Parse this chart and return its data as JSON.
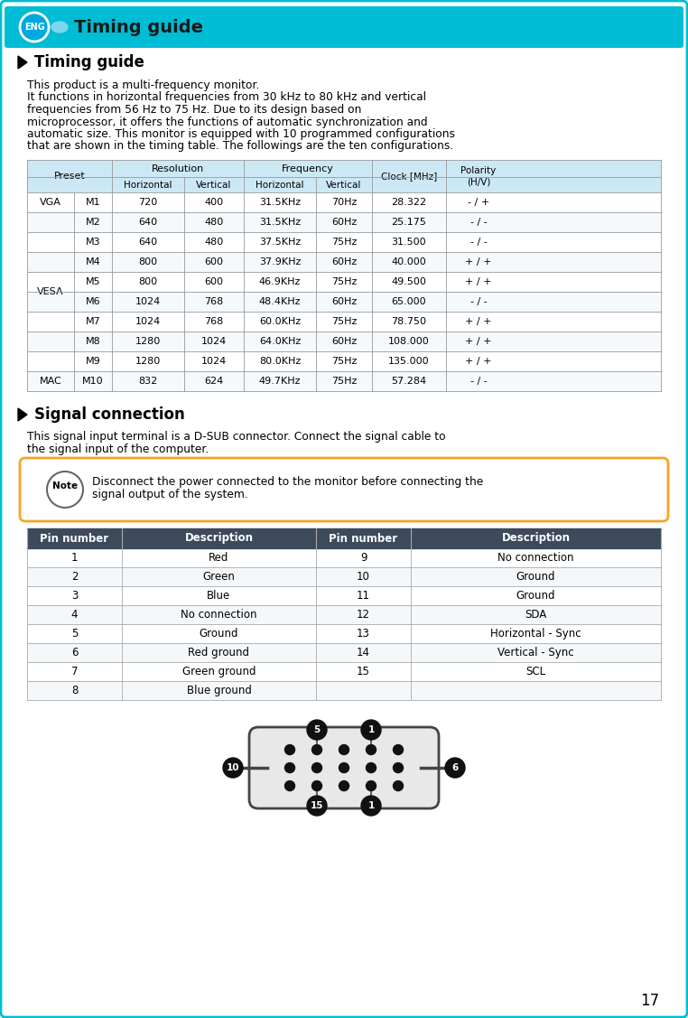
{
  "page_bg": "#ffffff",
  "border_color": "#00bcd4",
  "header_bg": "#00bcd4",
  "header_text": "Timing guide",
  "eng_badge_text": "ENG",
  "section1_title": "Timing guide",
  "section1_body": "This product is a multi-frequency monitor.\nIt functions in horizontal frequencies from 30 kHz to 80 kHz and vertical\nfrequencies from 56 Hz to 75 Hz. Due to its design based on\nmicroprocessor, it offers the functions of automatic synchronization and\nautomatic size. This monitor is equipped with 10 programmed configurations\nthat are shown in the timing table. The followings are the ten configurations.",
  "timing_table_header_bg": "#cde8f5",
  "timing_rows": [
    [
      "VGA",
      "M1",
      "720",
      "400",
      "31.5KHz",
      "70Hz",
      "28.322",
      "- / +"
    ],
    [
      "VESA",
      "M2",
      "640",
      "480",
      "31.5KHz",
      "60Hz",
      "25.175",
      "- / -"
    ],
    [
      "",
      "M3",
      "640",
      "480",
      "37.5KHz",
      "75Hz",
      "31.500",
      "- / -"
    ],
    [
      "",
      "M4",
      "800",
      "600",
      "37.9KHz",
      "60Hz",
      "40.000",
      "+ / +"
    ],
    [
      "",
      "M5",
      "800",
      "600",
      "46.9KHz",
      "75Hz",
      "49.500",
      "+ / +"
    ],
    [
      "",
      "M6",
      "1024",
      "768",
      "48.4KHz",
      "60Hz",
      "65.000",
      "- / -"
    ],
    [
      "",
      "M7",
      "1024",
      "768",
      "60.0KHz",
      "75Hz",
      "78.750",
      "+ / +"
    ],
    [
      "",
      "M8",
      "1280",
      "1024",
      "64.0KHz",
      "60Hz",
      "108.000",
      "+ / +"
    ],
    [
      "",
      "M9",
      "1280",
      "1024",
      "80.0KHz",
      "75Hz",
      "135.000",
      "+ / +"
    ],
    [
      "MAC",
      "M10",
      "832",
      "624",
      "49.7KHz",
      "75Hz",
      "57.284",
      "- / -"
    ]
  ],
  "section2_title": "Signal connection",
  "section2_body": "This signal input terminal is a D-SUB connector. Connect the signal cable to\nthe signal input of the computer.",
  "note_text": "Disconnect the power connected to the monitor before connecting the\nsignal output of the system.",
  "note_border": "#f5a623",
  "pin_headers": [
    "Pin number",
    "Description",
    "Pin number",
    "Description"
  ],
  "pin_rows": [
    [
      "1",
      "Red",
      "9",
      "No connection"
    ],
    [
      "2",
      "Green",
      "10",
      "Ground"
    ],
    [
      "3",
      "Blue",
      "11",
      "Ground"
    ],
    [
      "4",
      "No connection",
      "12",
      "SDA"
    ],
    [
      "5",
      "Ground",
      "13",
      "Horizontal - Sync"
    ],
    [
      "6",
      "Red ground",
      "14",
      "Vertical - Sync"
    ],
    [
      "7",
      "Green ground",
      "15",
      "SCL"
    ],
    [
      "8",
      "Blue ground",
      "",
      ""
    ]
  ],
  "page_number": "17"
}
